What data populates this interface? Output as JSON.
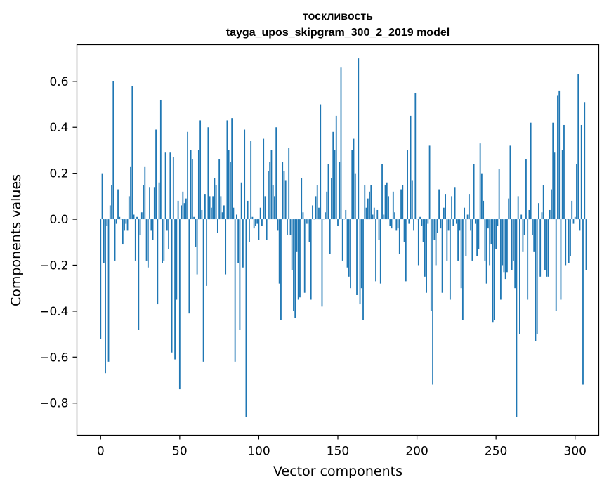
{
  "chart_data": {
    "type": "bar",
    "title": "тоскливость",
    "subtitle": "tayga_upos_skipgram_300_2_2019 model",
    "xlabel": "Vector components",
    "ylabel": "Components values",
    "xlim": [
      -15,
      315
    ],
    "ylim": [
      -0.94,
      0.76
    ],
    "xticks": [
      0,
      50,
      100,
      150,
      200,
      250,
      300
    ],
    "yticks": [
      -0.8,
      -0.6,
      -0.4,
      -0.2,
      0.0,
      0.2,
      0.4,
      0.6
    ],
    "ytick_labels": [
      "−0.8",
      "−0.6",
      "−0.4",
      "−0.2",
      "0.0",
      "0.2",
      "0.4",
      "0.6"
    ],
    "bar_color": "#1f77b4",
    "grid": false,
    "values": [
      -0.52,
      0.2,
      -0.19,
      -0.67,
      -0.03,
      -0.62,
      0.06,
      0.15,
      0.6,
      -0.18,
      -0.02,
      0.13,
      0.01,
      0.0,
      -0.11,
      -0.05,
      -0.02,
      -0.05,
      0.1,
      0.23,
      0.58,
      0.02,
      -0.18,
      0.01,
      -0.48,
      -0.07,
      0.03,
      0.15,
      0.23,
      -0.18,
      -0.21,
      0.14,
      -0.05,
      -0.09,
      0.14,
      0.39,
      -0.37,
      0.16,
      0.52,
      -0.19,
      -0.18,
      0.29,
      -0.05,
      -0.13,
      0.29,
      -0.58,
      0.27,
      -0.61,
      -0.35,
      0.08,
      -0.74,
      0.06,
      0.12,
      0.07,
      0.09,
      0.38,
      -0.41,
      0.3,
      0.26,
      0.01,
      -0.12,
      -0.24,
      0.3,
      0.43,
      0.04,
      -0.62,
      0.11,
      -0.29,
      0.4,
      0.1,
      0.05,
      0.1,
      0.18,
      0.15,
      -0.06,
      0.26,
      0.1,
      0.03,
      0.06,
      -0.24,
      0.43,
      0.3,
      0.25,
      0.44,
      0.05,
      -0.62,
      0.02,
      -0.19,
      -0.48,
      0.16,
      -0.21,
      0.39,
      -0.86,
      0.08,
      -0.1,
      0.34,
      0.01,
      -0.04,
      -0.03,
      -0.02,
      -0.09,
      0.05,
      -0.03,
      0.35,
      0.1,
      -0.09,
      0.21,
      0.25,
      0.3,
      0.15,
      0.1,
      0.4,
      -0.05,
      -0.28,
      -0.44,
      0.25,
      0.21,
      0.17,
      -0.07,
      0.31,
      -0.07,
      -0.22,
      -0.4,
      -0.43,
      -0.14,
      -0.35,
      -0.34,
      0.18,
      0.03,
      -0.32,
      -0.02,
      -0.02,
      -0.1,
      -0.35,
      0.06,
      0.0,
      0.1,
      0.15,
      0.05,
      0.5,
      -0.38,
      0.0,
      0.03,
      0.12,
      0.24,
      -0.15,
      0.18,
      0.38,
      0.3,
      0.45,
      -0.03,
      0.25,
      0.66,
      -0.18,
      0.0,
      0.04,
      -0.21,
      -0.25,
      -0.3,
      0.3,
      0.35,
      0.2,
      -0.33,
      0.7,
      -0.37,
      -0.3,
      -0.44,
      0.15,
      0.05,
      0.09,
      0.12,
      0.15,
      0.02,
      0.05,
      -0.27,
      0.04,
      -0.09,
      -0.28,
      0.24,
      0.02,
      0.15,
      0.16,
      0.1,
      -0.03,
      -0.04,
      0.12,
      0.03,
      -0.05,
      -0.04,
      -0.15,
      0.13,
      0.15,
      -0.1,
      -0.27,
      0.3,
      -0.02,
      0.45,
      0.17,
      -0.05,
      0.55,
      0.0,
      -0.2,
      0.01,
      -0.03,
      -0.1,
      -0.25,
      -0.32,
      -0.02,
      0.32,
      -0.4,
      -0.72,
      -0.09,
      -0.2,
      -0.06,
      0.13,
      -0.04,
      -0.32,
      0.05,
      0.11,
      -0.18,
      -0.05,
      -0.35,
      0.1,
      -0.03,
      0.14,
      -0.02,
      -0.18,
      -0.05,
      -0.3,
      -0.44,
      0.05,
      -0.16,
      0.02,
      0.11,
      -0.05,
      -0.18,
      0.24,
      -0.02,
      -0.16,
      -0.13,
      0.33,
      0.2,
      0.08,
      -0.18,
      -0.28,
      -0.04,
      -0.2,
      -0.11,
      -0.45,
      -0.44,
      -0.13,
      -0.03,
      0.22,
      -0.35,
      -0.2,
      -0.23,
      -0.26,
      -0.23,
      0.09,
      0.32,
      -0.22,
      -0.18,
      -0.3,
      -0.86,
      0.1,
      -0.5,
      0.02,
      -0.14,
      -0.07,
      0.26,
      -0.35,
      0.04,
      0.42,
      -0.07,
      -0.14,
      -0.53,
      -0.5,
      0.07,
      -0.25,
      0.03,
      0.15,
      -0.22,
      -0.25,
      -0.25,
      0.04,
      0.13,
      0.42,
      0.29,
      -0.4,
      0.54,
      0.56,
      -0.35,
      0.3,
      0.41,
      -0.2,
      0.0,
      -0.19,
      -0.16,
      0.08,
      -0.02,
      0.01,
      0.24,
      0.63,
      -0.05,
      0.41,
      -0.72,
      0.51,
      -0.22
    ]
  }
}
